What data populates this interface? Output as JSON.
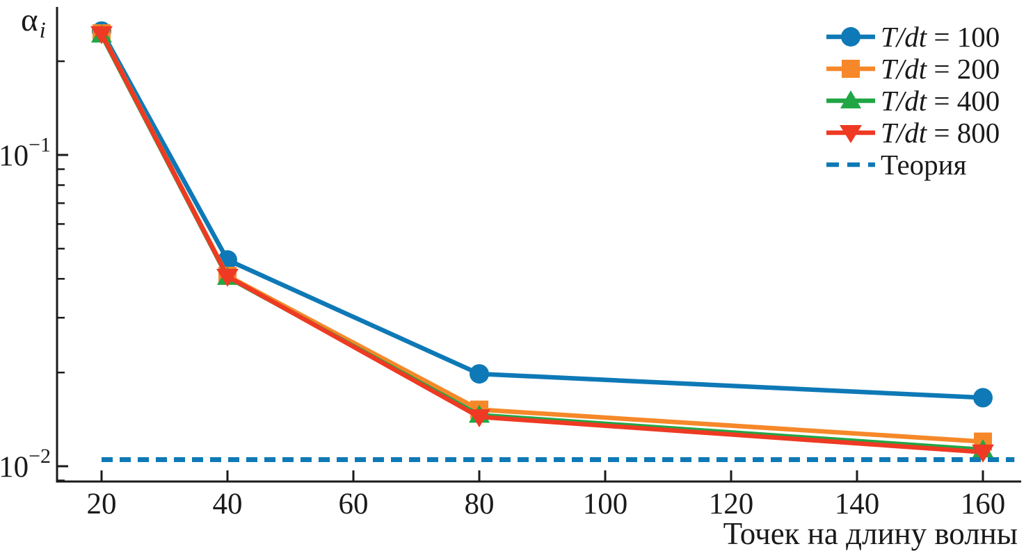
{
  "figure": {
    "ylabel": {
      "base": "α",
      "sub": "i"
    },
    "xlabel": "Точек на длину волны"
  },
  "chart_data": {
    "type": "line",
    "title": "",
    "grid": false,
    "legend_position": "top-right",
    "x_axis": {
      "label": "Точек на длину волны",
      "scale": "linear",
      "ticks": [
        20,
        40,
        60,
        80,
        100,
        120,
        140,
        160
      ],
      "range": [
        12.9,
        166
      ]
    },
    "y_axis": {
      "label": "αi",
      "scale": "log",
      "ticks": [
        {
          "value": 0.1,
          "mantissa": "10",
          "exponent": "−1"
        },
        {
          "value": 0.01,
          "mantissa": "10",
          "exponent": "−2"
        }
      ],
      "minor_ticks": true,
      "range": [
        0.0089,
        0.29
      ]
    },
    "x": [
      20,
      40,
      80,
      160
    ],
    "series": [
      {
        "name": "T/dt = 100",
        "label_math": "T/dt",
        "label_rest": " = 100",
        "color": "#0E79B6",
        "marker": "circle",
        "values": [
          0.25,
          0.046,
          0.0198,
          0.0166
        ]
      },
      {
        "name": "T/dt = 200",
        "label_math": "T/dt",
        "label_rest": " = 200",
        "color": "#F68829",
        "marker": "square",
        "values": [
          0.246,
          0.0409,
          0.0152,
          0.012
        ]
      },
      {
        "name": "T/dt = 400",
        "label_math": "T/dt",
        "label_rest": " = 400",
        "color": "#21A645",
        "marker": "triangle-up",
        "values": [
          0.243,
          0.0405,
          0.0146,
          0.0113
        ]
      },
      {
        "name": "T/dt = 800",
        "label_math": "T/dt",
        "label_rest": " = 800",
        "color": "#EE3A23",
        "marker": "triangle-down",
        "values": [
          0.245,
          0.0407,
          0.0144,
          0.0111
        ]
      }
    ],
    "theory_line": {
      "label": "Теория",
      "color": "#0E79B6",
      "style": "dashed",
      "value": 0.0105,
      "x_range": [
        20,
        165
      ]
    },
    "colors": {
      "axis": "#1a1a1a",
      "text": "#1a1a1a",
      "background": "#ffffff"
    }
  }
}
